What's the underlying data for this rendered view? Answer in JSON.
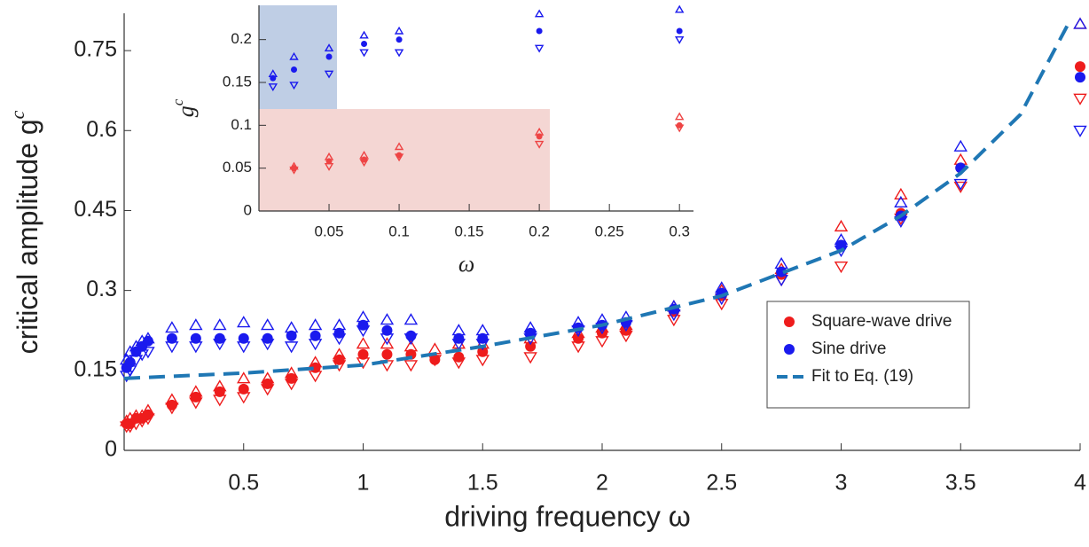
{
  "chart_data": [
    {
      "type": "scatter",
      "x_label": "driving frequency ω",
      "y_label": "critical amplitude  g",
      "y_label_sup": "c",
      "xlim": [
        0,
        4
      ],
      "ylim": [
        0,
        0.82
      ],
      "xticks": [
        0.5,
        1,
        1.5,
        2,
        2.5,
        3,
        3.5,
        4
      ],
      "yticks": [
        0,
        0.15,
        0.3,
        0.45,
        0.6,
        0.75
      ],
      "legend": "lower-right",
      "series": [
        {
          "name": "Square-wave drive",
          "color": "#ee1c1c",
          "x": [
            0.01,
            0.025,
            0.05,
            0.075,
            0.1,
            0.2,
            0.3,
            0.4,
            0.5,
            0.6,
            0.7,
            0.8,
            0.9,
            1.0,
            1.1,
            1.2,
            1.3,
            1.4,
            1.5,
            1.7,
            1.9,
            2.0,
            2.1,
            2.3,
            2.5,
            2.75,
            3,
            3.25,
            3.5,
            4
          ],
          "values": [
            0.05,
            0.05,
            0.06,
            0.06,
            0.067,
            0.085,
            0.1,
            0.11,
            0.115,
            0.125,
            0.135,
            0.155,
            0.17,
            0.18,
            0.18,
            0.18,
            0.17,
            0.175,
            0.185,
            0.195,
            0.21,
            0.22,
            0.225,
            0.26,
            0.29,
            0.33,
            0.385,
            0.445,
            0.53,
            0.72
          ],
          "upper": [
            0.055,
            0.06,
            0.065,
            0.065,
            0.075,
            0.095,
            0.11,
            0.12,
            0.135,
            0.135,
            0.145,
            0.165,
            0.18,
            0.2,
            0.2,
            0.195,
            0.19,
            0.2,
            0.2,
            0.21,
            0.22,
            0.23,
            0.235,
            0.27,
            0.3,
            0.34,
            0.42,
            0.48,
            0.545,
            0.8
          ],
          "lower": [
            0.045,
            0.045,
            0.05,
            0.055,
            0.06,
            0.08,
            0.09,
            0.095,
            0.1,
            0.115,
            0.125,
            0.14,
            0.16,
            0.165,
            0.16,
            0.16,
            0.17,
            0.165,
            0.17,
            0.175,
            0.195,
            0.205,
            0.215,
            0.245,
            0.275,
            0.32,
            0.345,
            0.435,
            0.495,
            0.66
          ]
        },
        {
          "name": "Sine drive",
          "color": "#1a1aee",
          "x": [
            0.01,
            0.025,
            0.05,
            0.075,
            0.1,
            0.2,
            0.3,
            0.4,
            0.5,
            0.6,
            0.7,
            0.8,
            0.9,
            1.0,
            1.1,
            1.2,
            1.4,
            1.5,
            1.7,
            1.9,
            2.0,
            2.1,
            2.3,
            2.5,
            2.75,
            3,
            3.25,
            3.5,
            4
          ],
          "values": [
            0.155,
            0.165,
            0.185,
            0.195,
            0.205,
            0.21,
            0.21,
            0.21,
            0.21,
            0.21,
            0.215,
            0.215,
            0.22,
            0.235,
            0.225,
            0.215,
            0.21,
            0.21,
            0.22,
            0.23,
            0.235,
            0.24,
            0.265,
            0.295,
            0.335,
            0.385,
            0.44,
            0.53,
            0.7
          ],
          "upper": [
            0.17,
            0.185,
            0.195,
            0.205,
            0.21,
            0.23,
            0.235,
            0.235,
            0.24,
            0.235,
            0.23,
            0.235,
            0.235,
            0.25,
            0.245,
            0.245,
            0.225,
            0.225,
            0.23,
            0.24,
            0.245,
            0.25,
            0.27,
            0.305,
            0.35,
            0.395,
            0.465,
            0.57,
            0.8
          ],
          "lower": [
            0.14,
            0.15,
            0.17,
            0.18,
            0.185,
            0.195,
            0.195,
            0.2,
            0.195,
            0.2,
            0.195,
            0.2,
            0.21,
            0.225,
            0.21,
            0.21,
            0.2,
            0.2,
            0.21,
            0.225,
            0.23,
            0.235,
            0.255,
            0.285,
            0.32,
            0.375,
            0.43,
            0.5,
            0.6
          ]
        },
        {
          "name": "Fit to Eq. (19)",
          "color": "#1f77b4",
          "style": "dashed",
          "x": [
            0,
            0.5,
            1,
            1.5,
            2,
            2.5,
            3,
            3.25,
            3.5,
            3.75,
            3.95
          ],
          "values": [
            0.135,
            0.145,
            0.16,
            0.195,
            0.235,
            0.29,
            0.375,
            0.44,
            0.52,
            0.63,
            0.8
          ]
        }
      ]
    },
    {
      "type": "scatter",
      "x_label": "ω",
      "y_label": "g",
      "y_label_sup": "c",
      "xlim": [
        0,
        0.31
      ],
      "ylim": [
        0,
        0.24
      ],
      "xticks": [
        0.05,
        0.1,
        0.15,
        0.2,
        0.25,
        0.3
      ],
      "yticks": [
        0,
        0.05,
        0.1,
        0.15,
        0.2
      ],
      "series": [
        {
          "color": "#ee4444",
          "x": [
            0.025,
            0.05,
            0.075,
            0.1,
            0.2,
            0.3
          ],
          "values": [
            0.05,
            0.058,
            0.06,
            0.065,
            0.087,
            0.1
          ],
          "upper": [
            0.052,
            0.063,
            0.065,
            0.075,
            0.092,
            0.11
          ],
          "lower": [
            0.048,
            0.052,
            0.057,
            0.063,
            0.078,
            0.097
          ]
        },
        {
          "color": "#1a1aee",
          "x": [
            0.01,
            0.025,
            0.05,
            0.075,
            0.1,
            0.2,
            0.3
          ],
          "values": [
            0.155,
            0.165,
            0.18,
            0.195,
            0.2,
            0.21,
            0.21
          ],
          "upper": [
            0.16,
            0.18,
            0.19,
            0.205,
            0.21,
            0.23,
            0.235
          ],
          "lower": [
            0.145,
            0.147,
            0.16,
            0.185,
            0.185,
            0.19,
            0.2
          ]
        }
      ]
    }
  ]
}
